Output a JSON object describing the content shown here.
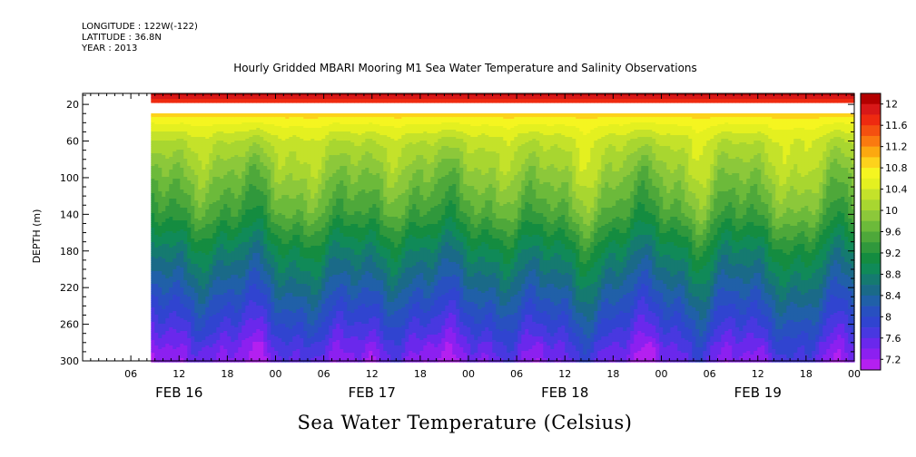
{
  "meta": {
    "longitude": "LONGITUDE : 122W(-122)",
    "latitude": "LATITUDE : 36.8N",
    "year": "YEAR : 2013"
  },
  "chart_data": {
    "type": "heatmap",
    "title": "Hourly Gridded MBARI Mooring M1 Sea Water Temperature and Salinity Observations",
    "footer_title": "Sea Water Temperature (Celsius)",
    "ylabel": "DEPTH (m)",
    "y_ticks": [
      20,
      60,
      100,
      140,
      180,
      220,
      260,
      300
    ],
    "ylim": [
      8,
      300
    ],
    "y_inverted": true,
    "x_hour_ticks": [
      "06",
      "12",
      "18",
      "00",
      "06",
      "12",
      "18",
      "00",
      "06",
      "12",
      "18",
      "00",
      "06",
      "12",
      "18",
      "00"
    ],
    "x_date_labels": [
      "FEB 16",
      "FEB 17",
      "FEB 18",
      "FEB 19"
    ],
    "xlim_hours": [
      0,
      96
    ],
    "data_start_hour": 8.5,
    "colorbar": {
      "labels": [
        "12",
        "11.6",
        "11.2",
        "10.8",
        "10.4",
        "10",
        "9.6",
        "9.2",
        "8.8",
        "8.4",
        "8",
        "7.6",
        "7.2"
      ],
      "levels": [
        12.2,
        12.0,
        11.8,
        11.6,
        11.4,
        11.2,
        11.0,
        10.8,
        10.6,
        10.4,
        10.2,
        10.0,
        9.8,
        9.6,
        9.4,
        9.2,
        9.0,
        8.8,
        8.6,
        8.4,
        8.2,
        8.0,
        7.8,
        7.6,
        7.4,
        7.2,
        7.0
      ],
      "colors": [
        "#b30000",
        "#d81818",
        "#ee2a10",
        "#f45010",
        "#fa7a10",
        "#fca810",
        "#fdd21c",
        "#f5f520",
        "#e4f020",
        "#c4e22a",
        "#a8d630",
        "#8cc83a",
        "#6cba3a",
        "#4ea83a",
        "#30983c",
        "#148c40",
        "#108a58",
        "#157a70",
        "#1a6a88",
        "#2060a8",
        "#2850c0",
        "#3044d0",
        "#4838e0",
        "#6a28ec",
        "#8c20f0",
        "#b420f0"
      ]
    },
    "temperature_profile": {
      "depths": [
        10,
        17,
        30,
        42,
        60,
        80,
        100,
        120,
        140,
        160,
        180,
        200,
        220,
        240,
        260,
        280,
        300
      ],
      "values": [
        12.0,
        11.6,
        10.9,
        10.6,
        10.25,
        10.05,
        9.85,
        9.65,
        9.45,
        9.15,
        8.85,
        8.6,
        8.35,
        8.1,
        7.85,
        7.6,
        7.4
      ]
    },
    "gap_depth_range": [
      17,
      29
    ]
  }
}
